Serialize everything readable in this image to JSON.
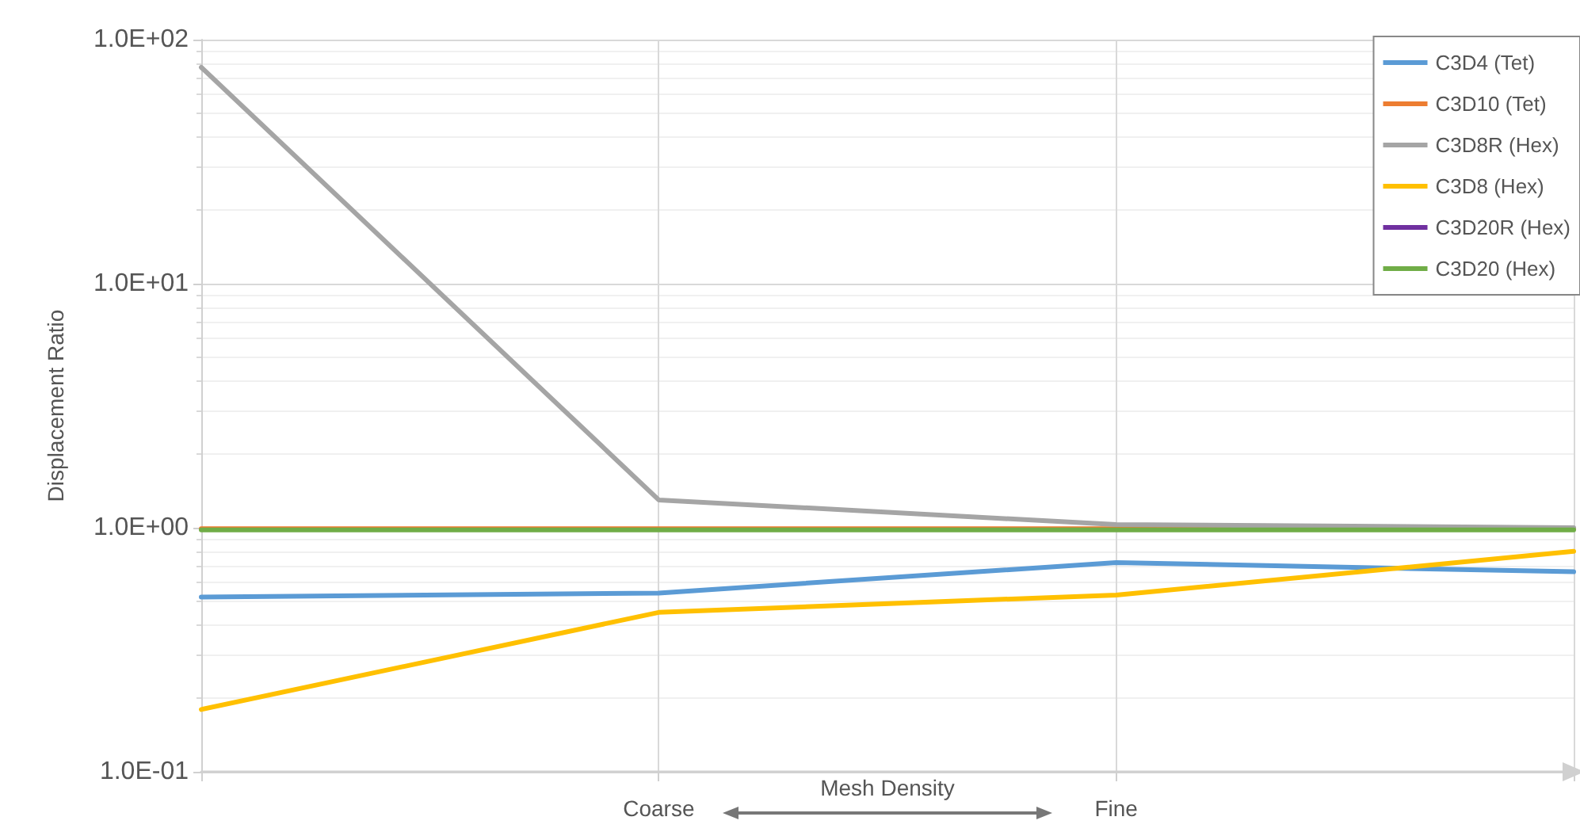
{
  "chart_data": {
    "type": "line",
    "ylabel": "Displacement Ratio",
    "xlabel": "Mesh Density",
    "categories": [
      null,
      "Coarse",
      "Fine",
      null
    ],
    "series": [
      {
        "name": "C3D4 (Tet)",
        "color": "#5b9bd5",
        "values": [
          0.52,
          0.54,
          0.72,
          0.66
        ]
      },
      {
        "name": "C3D10 (Tet)",
        "color": "#ed7d31",
        "values": [
          0.99,
          0.99,
          0.99,
          0.99
        ]
      },
      {
        "name": "C3D8R (Hex)",
        "color": "#a5a5a5",
        "values": [
          77,
          1.3,
          1.03,
          1.0
        ]
      },
      {
        "name": "C3D8 (Hex)",
        "color": "#ffc000",
        "values": [
          0.18,
          0.45,
          0.53,
          0.8
        ]
      },
      {
        "name": "C3D20R (Hex)",
        "color": "#7030a0",
        "values": [
          null,
          null,
          null,
          null
        ]
      },
      {
        "name": "C3D20 (Hex)",
        "color": "#70ad47",
        "values": [
          0.98,
          0.98,
          0.98,
          0.98
        ]
      }
    ],
    "log": "y",
    "ylim": [
      0.1,
      100
    ],
    "yticks": [
      {
        "value": 0.1,
        "label": "1.0E-01"
      },
      {
        "value": 1,
        "label": "1.0E+00"
      },
      {
        "value": 10,
        "label": "1.0E+01"
      },
      {
        "value": 100,
        "label": "1.0E+02"
      }
    ],
    "grid": true,
    "legend": "top right",
    "marker": "none",
    "line_style": "solid"
  }
}
